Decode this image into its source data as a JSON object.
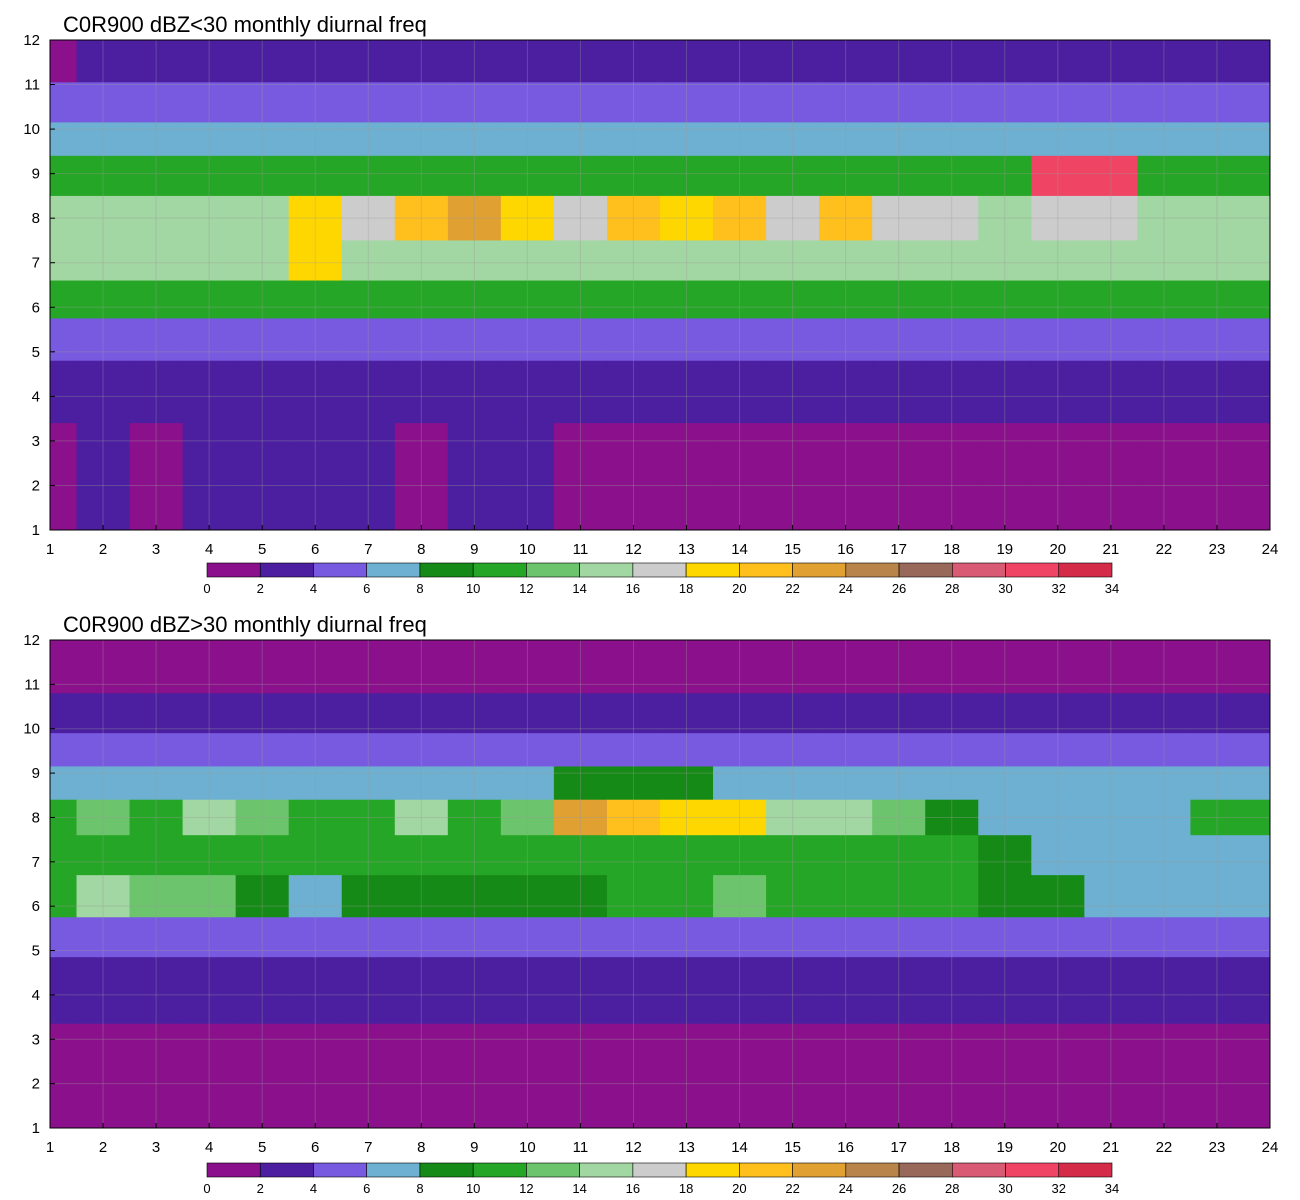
{
  "chart_data": [
    {
      "type": "contour",
      "title": "C0R900 dBZ<30 monthly diurnal freq",
      "xlabel": "",
      "ylabel": "",
      "x_ticks": [
        "1",
        "2",
        "3",
        "4",
        "5",
        "6",
        "7",
        "8",
        "9",
        "10",
        "11",
        "12",
        "13",
        "14",
        "15",
        "16",
        "17",
        "18",
        "19",
        "20",
        "21",
        "22",
        "23",
        "24"
      ],
      "y_ticks": [
        "1",
        "2",
        "3",
        "4",
        "5",
        "6",
        "7",
        "8",
        "9",
        "10",
        "11",
        "12"
      ],
      "xlim": [
        1,
        24
      ],
      "ylim": [
        1,
        12
      ],
      "grid": true,
      "bands": [
        {
          "y": 11.6,
          "values": [
            0,
            2,
            2,
            2,
            2,
            2,
            2,
            2,
            2,
            2,
            2,
            2,
            2,
            2,
            2,
            2,
            2,
            2,
            2,
            2,
            2,
            2,
            2,
            2
          ]
        },
        {
          "y": 10.5,
          "values": [
            5,
            5,
            5,
            5,
            5,
            5,
            5,
            5,
            5,
            5,
            5,
            5,
            5,
            5,
            5,
            5,
            5,
            5,
            5,
            5,
            5,
            5,
            5,
            5
          ]
        },
        {
          "y": 9.8,
          "values": [
            7,
            7,
            7,
            7,
            7,
            7,
            7,
            7,
            7,
            7,
            7,
            7,
            7,
            7,
            7,
            7,
            7,
            7,
            7,
            7,
            7,
            7,
            7,
            7
          ]
        },
        {
          "y": 9.0,
          "values": [
            11,
            11,
            11,
            11,
            11,
            11,
            11,
            11,
            11,
            11,
            11,
            11,
            11,
            11,
            11,
            11,
            11,
            11,
            11,
            31,
            31,
            11,
            11,
            11
          ]
        },
        {
          "y": 8.0,
          "values": [
            15,
            15,
            15,
            15,
            15,
            19,
            17,
            21,
            23,
            19,
            17,
            21,
            19,
            21,
            17,
            21,
            17,
            17,
            15,
            17,
            17,
            15,
            15,
            15
          ]
        },
        {
          "y": 7.0,
          "values": [
            15,
            15,
            15,
            15,
            15,
            19,
            15,
            15,
            15,
            15,
            15,
            15,
            15,
            15,
            15,
            15,
            15,
            15,
            15,
            15,
            15,
            15,
            15,
            15
          ]
        },
        {
          "y": 6.2,
          "values": [
            11,
            11,
            11,
            11,
            11,
            11,
            11,
            11,
            11,
            11,
            11,
            11,
            11,
            11,
            11,
            11,
            11,
            11,
            11,
            11,
            11,
            11,
            11,
            11
          ]
        },
        {
          "y": 5.3,
          "values": [
            5,
            5,
            5,
            5,
            5,
            5,
            5,
            5,
            5,
            5,
            5,
            5,
            5,
            5,
            5,
            5,
            5,
            5,
            5,
            5,
            5,
            5,
            5,
            5
          ]
        },
        {
          "y": 4.3,
          "values": [
            3,
            3,
            3,
            3,
            3,
            3,
            3,
            3,
            3,
            3,
            3,
            3,
            3,
            3,
            3,
            3,
            3,
            3,
            3,
            3,
            3,
            3,
            3,
            3
          ]
        },
        {
          "y": 2.5,
          "values": [
            1,
            3,
            1,
            3,
            3,
            3,
            3,
            1,
            3,
            3,
            1,
            1,
            1,
            1,
            1,
            1,
            1,
            1,
            1,
            1,
            1,
            1,
            1,
            1
          ]
        }
      ],
      "colorbar": {
        "levels": [
          0,
          2,
          4,
          6,
          8,
          10,
          12,
          14,
          16,
          18,
          20,
          22,
          24,
          26,
          28,
          30,
          32,
          34
        ],
        "colors": [
          "#8b108b",
          "#4b1fa0",
          "#785ae0",
          "#6db0d2",
          "#168a16",
          "#26a626",
          "#6cc46c",
          "#a2d6a2",
          "#cccccc",
          "#ffd700",
          "#ffbf1c",
          "#e0a032",
          "#b8844a",
          "#98685a",
          "#d85a74",
          "#f04464",
          "#d42c48"
        ]
      }
    },
    {
      "type": "contour",
      "title": "C0R900 dBZ>30 monthly diurnal freq",
      "xlabel": "",
      "ylabel": "",
      "x_ticks": [
        "1",
        "2",
        "3",
        "4",
        "5",
        "6",
        "7",
        "8",
        "9",
        "10",
        "11",
        "12",
        "13",
        "14",
        "15",
        "16",
        "17",
        "18",
        "19",
        "20",
        "21",
        "22",
        "23",
        "24"
      ],
      "y_ticks": [
        "1",
        "2",
        "3",
        "4",
        "5",
        "6",
        "7",
        "8",
        "9",
        "10",
        "11",
        "12"
      ],
      "xlim": [
        1,
        24
      ],
      "ylim": [
        1,
        12
      ],
      "grid": true,
      "bands": [
        {
          "y": 11.3,
          "values": [
            1,
            1,
            1,
            1,
            1,
            1,
            1,
            1,
            1,
            1,
            1,
            1,
            1,
            1,
            1,
            1,
            1,
            1,
            1,
            1,
            1,
            1,
            1,
            1
          ]
        },
        {
          "y": 10.3,
          "values": [
            3,
            3,
            3,
            3,
            3,
            3,
            3,
            3,
            3,
            3,
            3,
            3,
            3,
            3,
            3,
            3,
            3,
            3,
            3,
            3,
            3,
            3,
            3,
            3
          ]
        },
        {
          "y": 9.5,
          "values": [
            5,
            5,
            5,
            5,
            5,
            5,
            5,
            5,
            5,
            5,
            5,
            5,
            5,
            5,
            5,
            5,
            5,
            5,
            5,
            5,
            5,
            5,
            5,
            5
          ]
        },
        {
          "y": 8.8,
          "values": [
            7,
            7,
            7,
            7,
            7,
            7,
            7,
            7,
            7,
            7,
            9,
            9,
            9,
            7,
            7,
            7,
            7,
            7,
            7,
            7,
            7,
            7,
            7,
            7
          ]
        },
        {
          "y": 8.0,
          "values": [
            11,
            13,
            11,
            15,
            13,
            11,
            11,
            15,
            11,
            13,
            23,
            21,
            19,
            19,
            15,
            15,
            13,
            9,
            7,
            7,
            7,
            7,
            11,
            11
          ]
        },
        {
          "y": 7.2,
          "values": [
            11,
            11,
            11,
            11,
            11,
            11,
            11,
            11,
            11,
            11,
            11,
            11,
            11,
            11,
            11,
            11,
            11,
            11,
            9,
            7,
            7,
            7,
            7,
            7
          ]
        },
        {
          "y": 6.2,
          "values": [
            11,
            15,
            13,
            13,
            9,
            7,
            9,
            9,
            9,
            9,
            9,
            11,
            11,
            13,
            11,
            11,
            11,
            11,
            9,
            9,
            7,
            7,
            7,
            7
          ]
        },
        {
          "y": 5.3,
          "values": [
            5,
            5,
            5,
            5,
            5,
            5,
            5,
            5,
            5,
            5,
            5,
            5,
            5,
            5,
            5,
            5,
            5,
            5,
            5,
            5,
            5,
            5,
            5,
            5
          ]
        },
        {
          "y": 4.4,
          "values": [
            3,
            3,
            3,
            3,
            3,
            3,
            3,
            3,
            3,
            3,
            3,
            3,
            3,
            3,
            3,
            3,
            3,
            3,
            3,
            3,
            3,
            3,
            3,
            3
          ]
        },
        {
          "y": 2.3,
          "values": [
            1,
            1,
            1,
            1,
            1,
            1,
            1,
            1,
            1,
            1,
            1,
            1,
            1,
            1,
            1,
            1,
            1,
            1,
            1,
            1,
            1,
            1,
            1,
            1
          ]
        }
      ],
      "colorbar": {
        "levels": [
          0,
          2,
          4,
          6,
          8,
          10,
          12,
          14,
          16,
          18,
          20,
          22,
          24,
          26,
          28,
          30,
          32,
          34
        ],
        "colors": [
          "#8b108b",
          "#4b1fa0",
          "#785ae0",
          "#6db0d2",
          "#168a16",
          "#26a626",
          "#6cc46c",
          "#a2d6a2",
          "#cccccc",
          "#ffd700",
          "#ffbf1c",
          "#e0a032",
          "#b8844a",
          "#98685a",
          "#d85a74",
          "#f04464",
          "#d42c48"
        ]
      }
    }
  ]
}
